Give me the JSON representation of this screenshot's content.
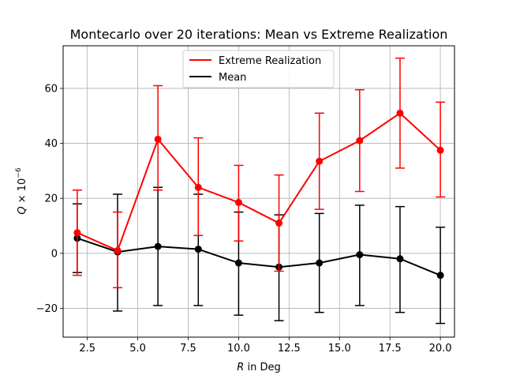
{
  "chart_data": {
    "type": "line",
    "title": "Montecarlo over 20 iterations: Mean vs Extreme Realization",
    "xlabel_var": "R",
    "xlabel_rest": " in Deg",
    "ylabel_var": "Q",
    "ylabel_times": " × 10",
    "ylabel_exp": "−6",
    "xlim": [
      1.3,
      20.7
    ],
    "ylim": [
      -30.5,
      75.5
    ],
    "xticks": [
      2.5,
      5.0,
      7.5,
      10.0,
      12.5,
      15.0,
      17.5,
      20.0
    ],
    "xtick_labels": [
      "2.5",
      "5.0",
      "7.5",
      "10.0",
      "12.5",
      "15.0",
      "17.5",
      "20.0"
    ],
    "yticks": [
      -20,
      0,
      20,
      40,
      60
    ],
    "ytick_labels": [
      "−20",
      "0",
      "20",
      "40",
      "60"
    ],
    "grid": true,
    "legend_position": "top-center",
    "series": [
      {
        "name": "Extreme Realization",
        "color": "#ff0000",
        "x": [
          2,
          4,
          6,
          8,
          10,
          12,
          14,
          16,
          18,
          20
        ],
        "y": [
          7.5,
          1.0,
          41.5,
          24.0,
          18.5,
          11.0,
          33.5,
          41.0,
          51.0,
          37.5
        ],
        "err_low": [
          -8,
          -12.5,
          23,
          6.5,
          4.5,
          -6.5,
          16,
          22.5,
          31,
          20.5
        ],
        "err_high": [
          23,
          15,
          61,
          42,
          32,
          28.5,
          51,
          59.5,
          71,
          55
        ]
      },
      {
        "name": "Mean",
        "color": "#000000",
        "x": [
          2,
          4,
          6,
          8,
          10,
          12,
          14,
          16,
          18,
          20
        ],
        "y": [
          5.5,
          0.5,
          2.5,
          1.5,
          -3.5,
          -5.0,
          -3.5,
          -0.5,
          -2.0,
          -8.0
        ],
        "err_low": [
          -7,
          -21,
          -19,
          -19,
          -22.5,
          -24.5,
          -21.5,
          -19,
          -21.5,
          -25.5
        ],
        "err_high": [
          18,
          21.5,
          24,
          21.5,
          15,
          14,
          14.5,
          17.5,
          17,
          9.5
        ]
      }
    ]
  }
}
